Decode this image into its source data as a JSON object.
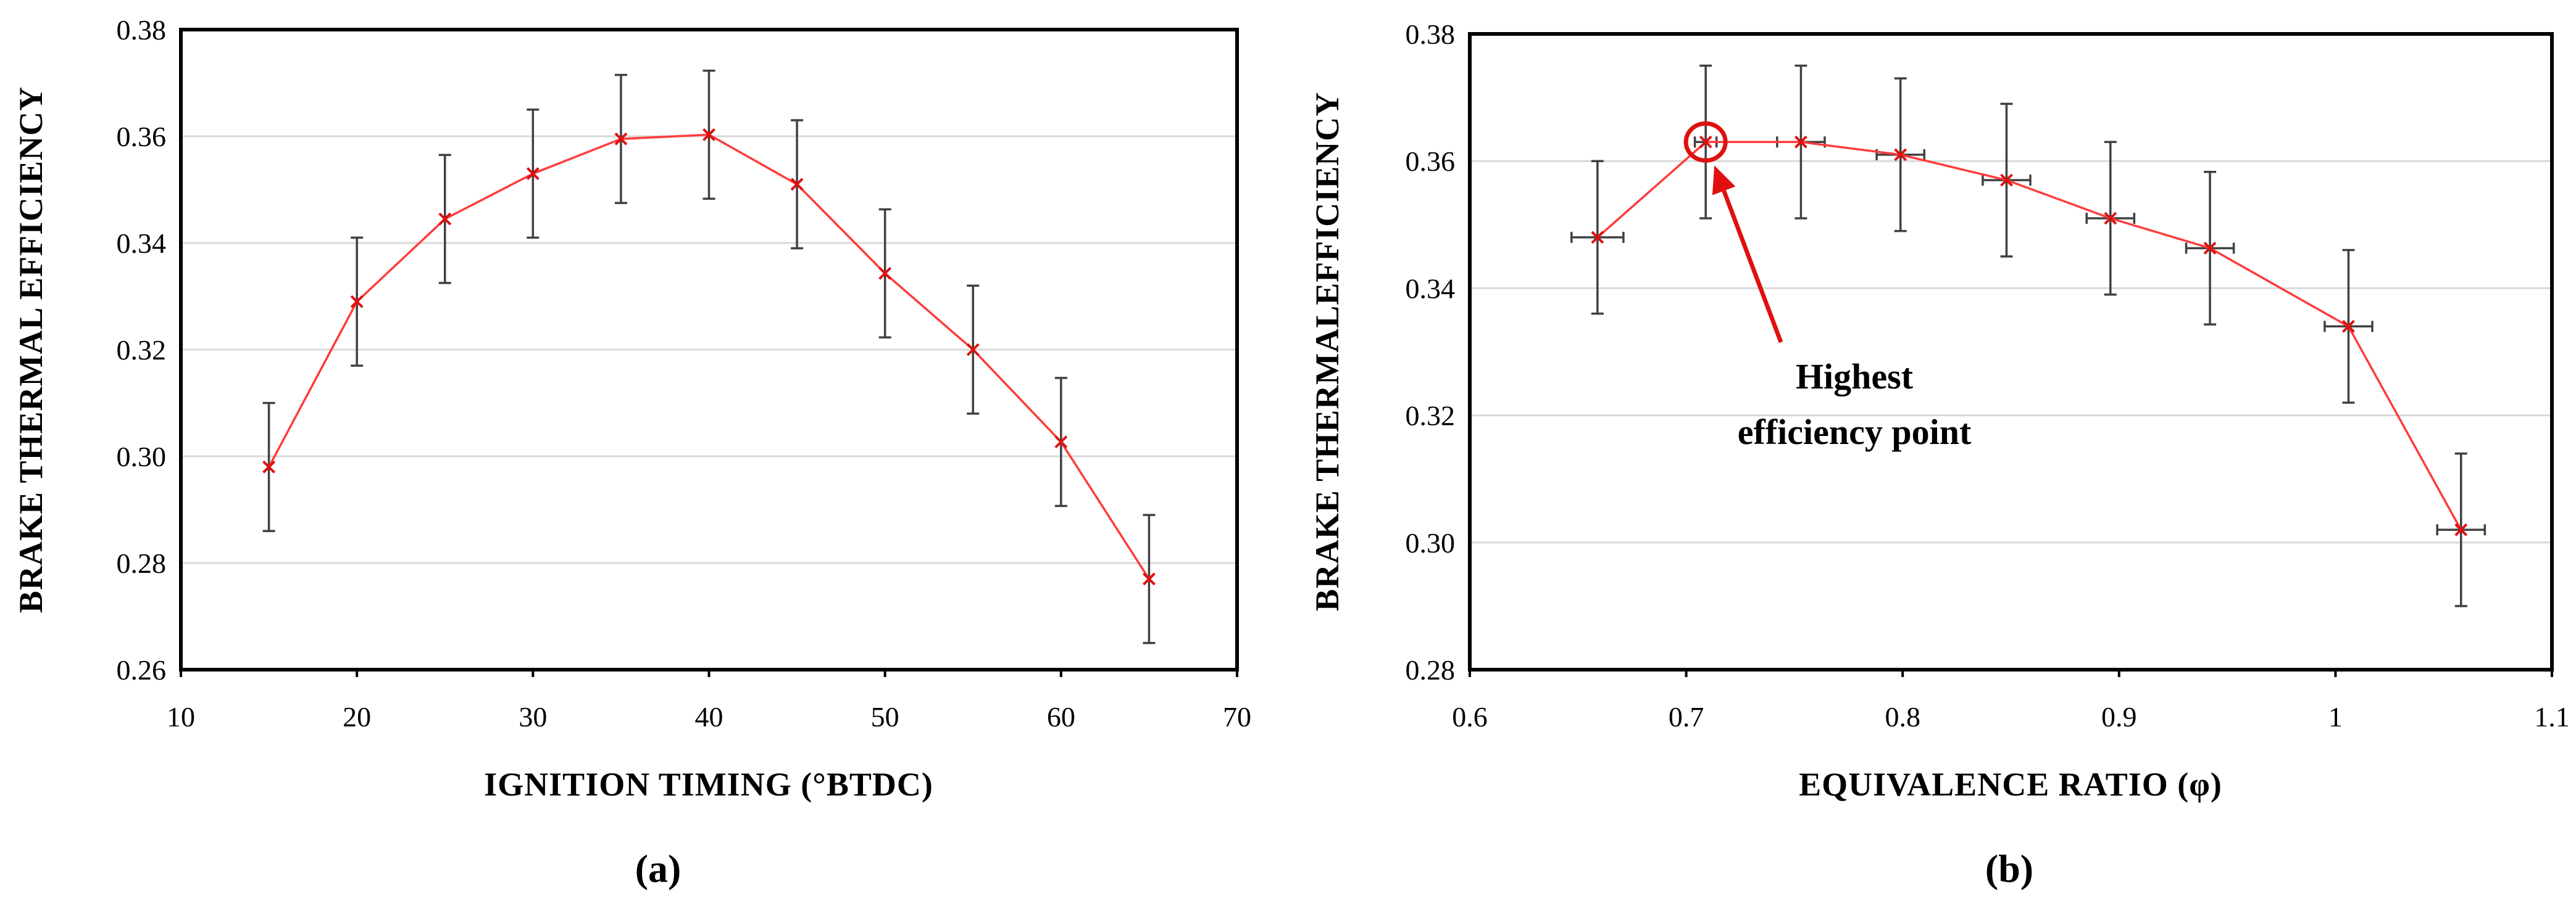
{
  "chart_data": [
    {
      "type": "line",
      "panel_label": "(a)",
      "title": "",
      "xlabel": "IGNITION TIMING (°BTDC)",
      "ylabel": "BRAKE THERMAL EFFICIENCY",
      "xlim": [
        10,
        70
      ],
      "ylim": [
        0.26,
        0.38
      ],
      "xticks": [
        10,
        20,
        30,
        40,
        50,
        60,
        70
      ],
      "yticks": [
        "0.26",
        "0.28",
        "0.30",
        "0.32",
        "0.34",
        "0.36",
        "0.38"
      ],
      "grid": "horizontal",
      "line_color": "#ff3b3b",
      "series": [
        {
          "name": "Brake thermal efficiency",
          "x": [
            15,
            20,
            25,
            30,
            35,
            40,
            45,
            50,
            55,
            60,
            65
          ],
          "y": [
            0.298,
            0.329,
            0.3445,
            0.353,
            0.3595,
            0.3603,
            0.351,
            0.3343,
            0.32,
            0.3027,
            0.277
          ],
          "y_err": [
            0.012,
            0.012,
            0.012,
            0.012,
            0.012,
            0.012,
            0.012,
            0.012,
            0.012,
            0.012,
            0.012
          ]
        }
      ]
    },
    {
      "type": "line",
      "panel_label": "(b)",
      "title": "",
      "xlabel": "EQUIVALENCE RATIO (φ)",
      "ylabel": "BRAKE THERMALEFFICIENCY",
      "xlim": [
        0.6,
        1.1
      ],
      "ylim": [
        0.28,
        0.38
      ],
      "xticks": [
        "0.6",
        "0.7",
        "0.8",
        "0.9",
        "1",
        "1.1"
      ],
      "yticks": [
        "0.28",
        "0.30",
        "0.32",
        "0.34",
        "0.36",
        "0.38"
      ],
      "grid": "horizontal",
      "line_color": "#ff3b3b",
      "series": [
        {
          "name": "Brake thermal efficiency",
          "x": [
            0.659,
            0.709,
            0.753,
            0.799,
            0.848,
            0.896,
            0.942,
            1.006,
            1.058
          ],
          "y": [
            0.348,
            0.363,
            0.363,
            0.361,
            0.357,
            0.351,
            0.3463,
            0.334,
            0.302
          ],
          "y_err": [
            0.012,
            0.012,
            0.012,
            0.012,
            0.012,
            0.012,
            0.012,
            0.012,
            0.012
          ],
          "x_err": [
            0.012,
            0.005,
            0.011,
            0.011,
            0.011,
            0.011,
            0.011,
            0.011,
            0.011
          ]
        }
      ],
      "annotation": {
        "lines": [
          "Highest",
          "efficiency point"
        ],
        "target_x": 0.709,
        "target_y": 0.363,
        "color": "#e01010"
      }
    }
  ]
}
